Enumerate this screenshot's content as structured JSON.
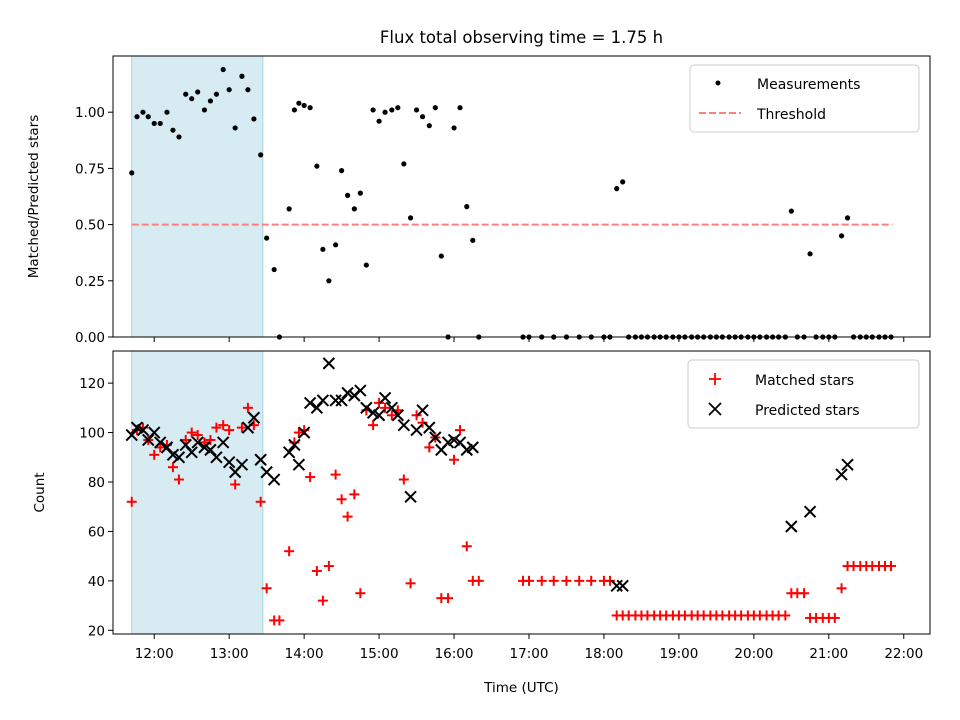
{
  "chart_data": [
    {
      "type": "scatter",
      "title": "Flux total observing time = 1.75 h",
      "xlabel": "",
      "ylabel": "Matched/Predicted stars",
      "xlim": [
        11.45,
        22.35
      ],
      "ylim": [
        0,
        1.25
      ],
      "yticks": [
        0.0,
        0.25,
        0.5,
        0.75,
        1.0
      ],
      "ytick_labels": [
        "0.00",
        "0.25",
        "0.50",
        "0.75",
        "1.00"
      ],
      "legend": "top-right",
      "highlight_span": [
        11.7,
        13.45
      ],
      "highlight_color": "#add8e6",
      "series": [
        {
          "name": "Measurements",
          "marker": "dot",
          "color": "#000000",
          "x": [
            11.7,
            11.77,
            11.85,
            11.92,
            12.0,
            12.08,
            12.17,
            12.25,
            12.33,
            12.42,
            12.5,
            12.58,
            12.67,
            12.75,
            12.83,
            12.92,
            13.0,
            13.08,
            13.17,
            13.25,
            13.33,
            13.42,
            13.5,
            13.6,
            13.67,
            13.8,
            13.87,
            13.93,
            14.0,
            14.08,
            14.17,
            14.25,
            14.33,
            14.42,
            14.5,
            14.58,
            14.67,
            14.75,
            14.83,
            14.92,
            15.0,
            15.08,
            15.17,
            15.25,
            15.33,
            15.42,
            15.5,
            15.58,
            15.67,
            15.75,
            15.83,
            15.92,
            16.0,
            16.08,
            16.17,
            16.25,
            16.33,
            16.92,
            17.0,
            17.17,
            17.33,
            17.5,
            17.67,
            17.83,
            18.0,
            18.08,
            18.17,
            18.25,
            18.33,
            18.42,
            18.5,
            18.58,
            18.67,
            18.75,
            18.83,
            18.92,
            19.0,
            19.08,
            19.17,
            19.25,
            19.33,
            19.42,
            19.5,
            19.58,
            19.67,
            19.75,
            19.83,
            19.92,
            20.0,
            20.08,
            20.17,
            20.25,
            20.33,
            20.42,
            20.5,
            20.58,
            20.67,
            20.75,
            20.83,
            20.92,
            21.0,
            21.08,
            21.17,
            21.25,
            21.33,
            21.42,
            21.5,
            21.58,
            21.67,
            21.75,
            21.83
          ],
          "y": [
            0.73,
            0.98,
            1.0,
            0.98,
            0.95,
            0.95,
            1.0,
            0.92,
            0.89,
            1.08,
            1.06,
            1.09,
            1.01,
            1.05,
            1.08,
            1.19,
            1.1,
            0.93,
            1.16,
            1.1,
            0.97,
            0.81,
            0.44,
            0.3,
            0.0,
            0.57,
            1.01,
            1.04,
            1.03,
            1.02,
            0.76,
            0.39,
            0.25,
            0.41,
            0.74,
            0.63,
            0.57,
            0.64,
            0.32,
            1.01,
            0.96,
            1.0,
            1.01,
            1.02,
            0.77,
            0.53,
            1.01,
            0.98,
            0.94,
            1.02,
            0.36,
            0.0,
            0.93,
            1.02,
            0.58,
            0.43,
            0.0,
            0.0,
            0.0,
            0.0,
            0.0,
            0.0,
            0.0,
            0.0,
            0.0,
            0.0,
            0.66,
            0.69,
            0.0,
            0.0,
            0.0,
            0.0,
            0.0,
            0.0,
            0.0,
            0.0,
            0.0,
            0.0,
            0.0,
            0.0,
            0.0,
            0.0,
            0.0,
            0.0,
            0.0,
            0.0,
            0.0,
            0.0,
            0.0,
            0.0,
            0.0,
            0.0,
            0.0,
            0.0,
            0.56,
            0.0,
            0.0,
            0.37,
            0.0,
            0.0,
            0.0,
            0.0,
            0.45,
            0.53,
            0.0,
            0.0,
            0.0,
            0.0,
            0.0,
            0.0,
            0.0
          ]
        },
        {
          "name": "Threshold",
          "marker": "dashed-line",
          "color": "#ff7f7f",
          "x": [
            11.7,
            21.85
          ],
          "y": [
            0.5,
            0.5
          ]
        }
      ]
    },
    {
      "type": "scatter",
      "title": "",
      "xlabel": "Time (UTC)",
      "ylabel": "Count",
      "xlim": [
        11.45,
        22.35
      ],
      "ylim": [
        18.5,
        133
      ],
      "yticks": [
        20,
        40,
        60,
        80,
        100,
        120
      ],
      "ytick_labels": [
        "20",
        "40",
        "60",
        "80",
        "100",
        "120"
      ],
      "xticks": [
        12,
        13,
        14,
        15,
        16,
        17,
        18,
        19,
        20,
        21,
        22
      ],
      "xtick_labels": [
        "12:00",
        "13:00",
        "14:00",
        "15:00",
        "16:00",
        "17:00",
        "18:00",
        "19:00",
        "20:00",
        "21:00",
        "22:00"
      ],
      "legend": "top-right",
      "highlight_span": [
        11.7,
        13.45
      ],
      "highlight_color": "#add8e6",
      "series": [
        {
          "name": "Matched stars",
          "marker": "plus",
          "color": "#ff0000",
          "x": [
            11.7,
            11.77,
            11.85,
            11.92,
            12.0,
            12.08,
            12.17,
            12.25,
            12.33,
            12.42,
            12.5,
            12.58,
            12.67,
            12.75,
            12.83,
            12.92,
            13.0,
            13.08,
            13.17,
            13.25,
            13.33,
            13.42,
            13.5,
            13.6,
            13.67,
            13.8,
            13.87,
            13.93,
            14.0,
            14.08,
            14.17,
            14.25,
            14.33,
            14.42,
            14.5,
            14.58,
            14.67,
            14.75,
            14.83,
            14.92,
            15.0,
            15.08,
            15.17,
            15.25,
            15.33,
            15.42,
            15.5,
            15.58,
            15.67,
            15.75,
            15.83,
            15.92,
            16.0,
            16.08,
            16.17,
            16.25,
            16.33,
            16.92,
            17.0,
            17.17,
            17.33,
            17.5,
            17.67,
            17.83,
            18.0,
            18.08,
            18.17,
            18.25,
            18.33,
            18.42,
            18.5,
            18.58,
            18.67,
            18.75,
            18.83,
            18.92,
            19.0,
            19.08,
            19.17,
            19.25,
            19.33,
            19.42,
            19.5,
            19.58,
            19.67,
            19.75,
            19.83,
            19.92,
            20.0,
            20.08,
            20.17,
            20.25,
            20.33,
            20.42,
            20.5,
            20.58,
            20.67,
            20.75,
            20.83,
            20.92,
            21.0,
            21.08,
            21.17,
            21.25,
            21.33,
            21.42,
            21.5,
            21.58,
            21.67,
            21.75,
            21.83
          ],
          "y": [
            72,
            101,
            102,
            97,
            91,
            94,
            95,
            86,
            81,
            97,
            100,
            99,
            96,
            97,
            102,
            103,
            101,
            79,
            102,
            110,
            103,
            72,
            37,
            24,
            24,
            52,
            96,
            100,
            101,
            82,
            44,
            32,
            46,
            83,
            73,
            66,
            75,
            35,
            109,
            103,
            112,
            110,
            107,
            109,
            81,
            39,
            107,
            104,
            94,
            98,
            33,
            33,
            89,
            101,
            54,
            40,
            40,
            40,
            40,
            40,
            40,
            40,
            40,
            40,
            40,
            40,
            26,
            26,
            26,
            26,
            26,
            26,
            26,
            26,
            26,
            26,
            26,
            26,
            26,
            26,
            26,
            26,
            26,
            26,
            26,
            26,
            26,
            26,
            26,
            26,
            26,
            26,
            26,
            26,
            35,
            35,
            35,
            25,
            25,
            25,
            25,
            25,
            37,
            46,
            46,
            46,
            46,
            46,
            46,
            46,
            46
          ]
        },
        {
          "name": "Predicted stars",
          "marker": "x",
          "color": "#000000",
          "x": [
            11.7,
            11.77,
            11.85,
            11.92,
            12.0,
            12.08,
            12.17,
            12.25,
            12.33,
            12.42,
            12.5,
            12.58,
            12.67,
            12.75,
            12.83,
            12.92,
            13.0,
            13.08,
            13.17,
            13.25,
            13.33,
            13.42,
            13.5,
            13.6,
            13.8,
            13.87,
            13.93,
            14.0,
            14.08,
            14.17,
            14.25,
            14.33,
            14.42,
            14.5,
            14.58,
            14.67,
            14.75,
            14.83,
            14.92,
            15.0,
            15.08,
            15.17,
            15.25,
            15.33,
            15.42,
            15.5,
            15.58,
            15.67,
            15.75,
            15.83,
            15.92,
            16.0,
            16.08,
            16.17,
            16.25,
            18.17,
            18.25,
            20.5,
            20.75,
            21.17,
            21.25
          ],
          "y": [
            99,
            102,
            101,
            97,
            100,
            96,
            94,
            91,
            90,
            95,
            92,
            96,
            94,
            93,
            90,
            96,
            88,
            84,
            87,
            102,
            106,
            89,
            84,
            81,
            92,
            95,
            87,
            100,
            112,
            110,
            113,
            128,
            113,
            113,
            116,
            115,
            117,
            110,
            108,
            107,
            114,
            110,
            107,
            103,
            74,
            101,
            109,
            102,
            98,
            93,
            96,
            97,
            96,
            93,
            94,
            38,
            38,
            62,
            68,
            83,
            87
          ]
        }
      ]
    }
  ]
}
